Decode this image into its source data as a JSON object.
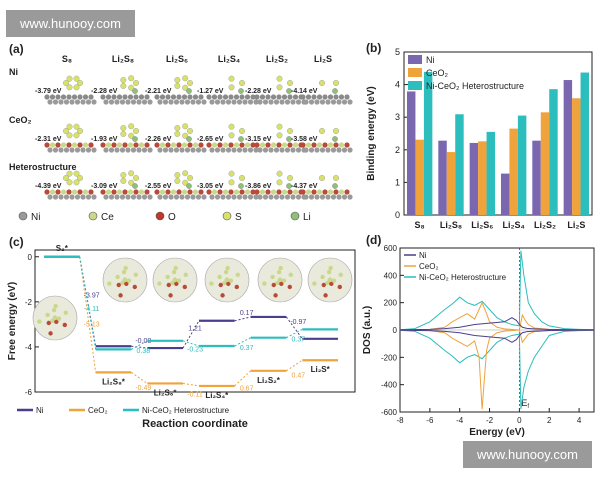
{
  "watermarks": {
    "top": "www.hunooy.com",
    "bottom": "www.hunooy.com"
  },
  "panel_a": {
    "label": "(a)",
    "columns": [
      "S₈",
      "Li₂S₈",
      "Li₂S₆",
      "Li₂S₄",
      "Li₂S₂",
      "Li₂S"
    ],
    "rows": [
      {
        "name": "Ni",
        "energies": [
          "-3.79 eV",
          "-2.28 eV",
          "-2.21 eV",
          "-1.27 eV",
          "-2.28 eV",
          "-4.14 eV"
        ]
      },
      {
        "name": "CeO₂",
        "energies": [
          "-2.31 eV",
          "-1.93 eV",
          "-2.26 eV",
          "-2.65 eV",
          "-3.15 eV",
          "-3.58 eV"
        ]
      },
      {
        "name": "Heterostructure",
        "energies": [
          "-4.39 eV",
          "-3.09 eV",
          "-2.55 eV",
          "-3.05 eV",
          "-3.86 eV",
          "-4.37 eV"
        ]
      }
    ],
    "legend": [
      {
        "label": "Ni",
        "color": "#9a9a9a"
      },
      {
        "label": "Ce",
        "color": "#c9d98a"
      },
      {
        "label": "O",
        "color": "#c0392b"
      },
      {
        "label": "S",
        "color": "#d7e16b"
      },
      {
        "label": "Li",
        "color": "#8fc07a"
      }
    ]
  },
  "chart_data": [
    {
      "type": "bar",
      "panel": "(b)",
      "ylabel": "Binding energy (eV)",
      "ylim": [
        0,
        5
      ],
      "yticks": [
        "0",
        "1",
        "2",
        "3",
        "4",
        "5"
      ],
      "categories": [
        "S₈",
        "Li₂S₈",
        "Li₂S₆",
        "Li₂S₄",
        "Li₂S₂",
        "Li₂S"
      ],
      "series": [
        {
          "name": "Ni",
          "color": "#7a67b0",
          "values": [
            3.79,
            2.28,
            2.21,
            1.27,
            2.28,
            4.14
          ]
        },
        {
          "name": "CeO₂",
          "color": "#f0a23b",
          "values": [
            2.31,
            1.93,
            2.26,
            2.65,
            3.15,
            3.58
          ]
        },
        {
          "name": "Ni-CeO₂ Heterostructure",
          "color": "#2cbdbd",
          "values": [
            4.39,
            3.09,
            2.55,
            3.05,
            3.86,
            4.37
          ]
        }
      ],
      "legend_position": "top-left"
    },
    {
      "type": "line",
      "panel": "(c)",
      "xlabel": "Reaction coordinate",
      "ylabel": "Free energy (eV)",
      "ylim": [
        -6,
        0.3
      ],
      "yticks": [
        "0",
        "-2",
        "-4",
        "-6"
      ],
      "states": [
        "S₈*",
        "Li₂S₈*",
        "Li₂S₆*",
        "Li₂S₄*",
        "Li₂S₂*",
        "Li₂S*"
      ],
      "series": [
        {
          "name": "Ni",
          "color": "#4a3f8c",
          "values": [
            0,
            -3.97,
            -4.05,
            -2.84,
            -2.67,
            -3.64
          ],
          "steps": [
            "-3.97",
            "-0.08",
            "1.21",
            "0.17",
            "-0.97"
          ]
        },
        {
          "name": "CeO₂",
          "color": "#f0a23b",
          "values": [
            0,
            -5.13,
            -5.62,
            -5.73,
            -5.06,
            -4.59
          ],
          "steps": [
            "-5.13",
            "-0.49",
            "-0.11",
            "0.67",
            "0.47"
          ]
        },
        {
          "name": "Ni-CeO₂ Heterostructure",
          "color": "#2cbdbd",
          "values": [
            0,
            -4.11,
            -3.73,
            -3.96,
            -3.59,
            -3.22
          ],
          "steps": [
            "-4.11",
            "0.38",
            "-0.23",
            "0.37",
            "0.37"
          ]
        }
      ],
      "legend_position": "bottom-left"
    },
    {
      "type": "line",
      "panel": "(d)",
      "xlabel": "Energy (eV)",
      "ylabel": "DOS (a.u.)",
      "xlim": [
        -8,
        5
      ],
      "ylim": [
        -600,
        600
      ],
      "xticks": [
        "-8",
        "-6",
        "-4",
        "-2",
        "0",
        "2",
        "4"
      ],
      "yticks": [
        "600",
        "400",
        "200",
        "0",
        "-200",
        "-400",
        "-600"
      ],
      "annotation": "E",
      "annotation_sub": "f",
      "series": [
        {
          "name": "Ni",
          "color": "#4a3f8c",
          "x": [
            -8,
            -6,
            -5,
            -4,
            -3,
            -2,
            -1,
            -0.5,
            -0.2,
            0,
            0.2,
            0.5,
            1,
            1.5,
            2,
            3,
            4,
            5
          ],
          "y_up": [
            2,
            5,
            10,
            20,
            40,
            50,
            60,
            90,
            70,
            40,
            20,
            12,
            8,
            6,
            4,
            3,
            2,
            2
          ],
          "y_down": [
            -2,
            -5,
            -10,
            -20,
            -40,
            -50,
            -60,
            -90,
            -70,
            -40,
            -20,
            -12,
            -8,
            -6,
            -4,
            -3,
            -2,
            -2
          ]
        },
        {
          "name": "CeO₂",
          "color": "#f0a23b",
          "x": [
            -8,
            -6,
            -5,
            -4.5,
            -4,
            -3.5,
            -3,
            -2.7,
            -2.5,
            -2.2,
            -2,
            -1.5,
            -1,
            0,
            0.2,
            0.4,
            0.6,
            1,
            2,
            3,
            4,
            5
          ],
          "y_up": [
            0,
            5,
            20,
            60,
            90,
            120,
            80,
            150,
            200,
            120,
            60,
            20,
            8,
            0,
            110,
            70,
            40,
            15,
            5,
            3,
            2,
            1
          ],
          "y_down": [
            0,
            -5,
            -20,
            -60,
            -90,
            -120,
            -80,
            -200,
            -580,
            -150,
            -60,
            -20,
            -8,
            0,
            -90,
            -60,
            -30,
            -12,
            -5,
            -3,
            -2,
            -1
          ]
        },
        {
          "name": "Ni-CeO₂ Heterostructure",
          "color": "#2cbdbd",
          "x": [
            -8,
            -7,
            -6,
            -5,
            -4.5,
            -4,
            -3.5,
            -3,
            -2.5,
            -2,
            -1.5,
            -1,
            -0.5,
            0,
            0.1,
            0.3,
            0.6,
            1,
            1.5,
            2,
            3,
            4,
            5
          ],
          "y_up": [
            2,
            10,
            60,
            150,
            190,
            240,
            200,
            180,
            210,
            150,
            90,
            60,
            40,
            30,
            580,
            400,
            200,
            120,
            60,
            30,
            10,
            5,
            2
          ],
          "y_down": [
            -2,
            -10,
            -60,
            -150,
            -190,
            -240,
            -200,
            -180,
            -210,
            -150,
            -90,
            -60,
            -40,
            -30,
            -580,
            -420,
            -300,
            -200,
            -120,
            -40,
            -10,
            -5,
            -2
          ]
        }
      ],
      "legend_position": "top-left"
    }
  ]
}
